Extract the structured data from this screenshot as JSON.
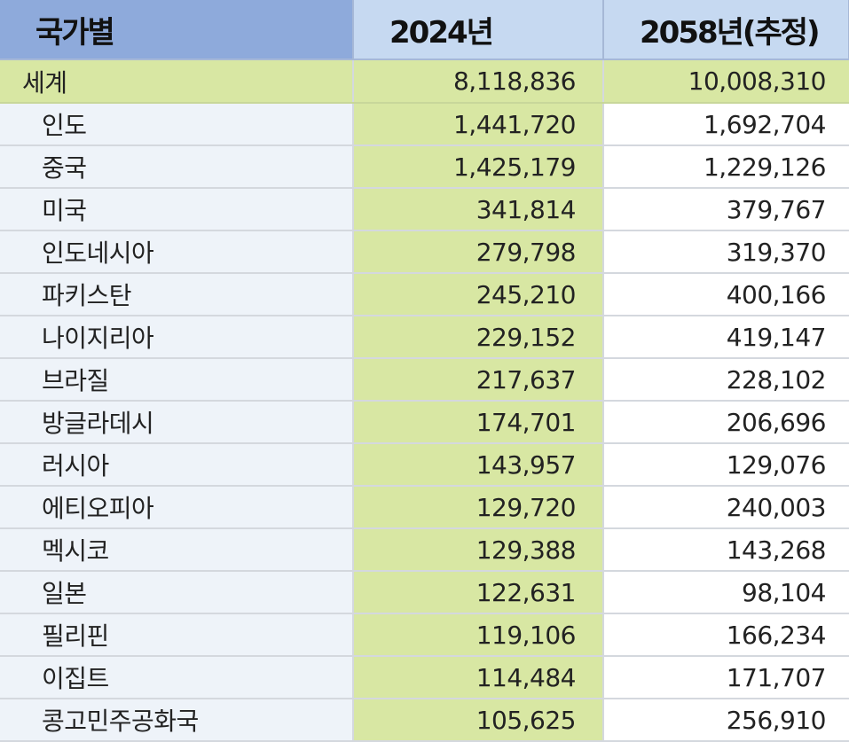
{
  "headers": {
    "country": "국가별",
    "y2024": "2024년",
    "y2058": "2058년(추정)"
  },
  "rows": [
    {
      "name": "세계",
      "v2024": "8,118,836",
      "v2058": "10,008,310"
    },
    {
      "name": "인도",
      "v2024": "1,441,720",
      "v2058": "1,692,704"
    },
    {
      "name": "중국",
      "v2024": "1,425,179",
      "v2058": "1,229,126"
    },
    {
      "name": "미국",
      "v2024": "341,814",
      "v2058": "379,767"
    },
    {
      "name": "인도네시아",
      "v2024": "279,798",
      "v2058": "319,370"
    },
    {
      "name": "파키스탄",
      "v2024": "245,210",
      "v2058": "400,166"
    },
    {
      "name": "나이지리아",
      "v2024": "229,152",
      "v2058": "419,147"
    },
    {
      "name": "브라질",
      "v2024": "217,637",
      "v2058": "228,102"
    },
    {
      "name": "방글라데시",
      "v2024": "174,701",
      "v2058": "206,696"
    },
    {
      "name": "러시아",
      "v2024": "143,957",
      "v2058": "129,076"
    },
    {
      "name": "에티오피아",
      "v2024": "129,720",
      "v2058": "240,003"
    },
    {
      "name": "멕시코",
      "v2024": "129,388",
      "v2058": "143,268"
    },
    {
      "name": "일본",
      "v2024": "122,631",
      "v2058": "98,104"
    },
    {
      "name": "필리핀",
      "v2024": "119,106",
      "v2058": "166,234"
    },
    {
      "name": "이집트",
      "v2024": "114,484",
      "v2058": "171,707"
    },
    {
      "name": "콩고민주공화국",
      "v2024": "105,625",
      "v2058": "256,910"
    }
  ]
}
